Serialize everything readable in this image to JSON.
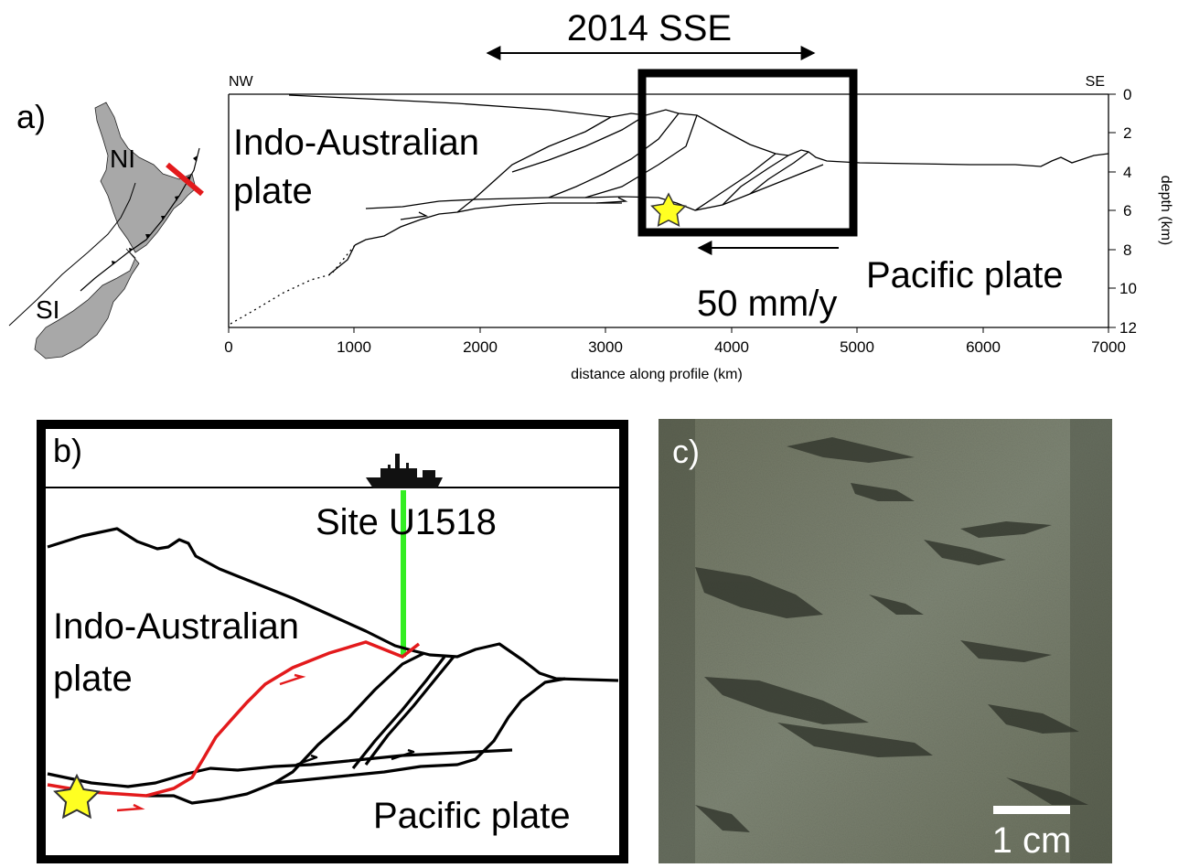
{
  "panel_a": {
    "label": "a)",
    "map": {
      "ni": "NI",
      "si": "SI"
    },
    "sse_label": "2014 SSE",
    "nw": "NW",
    "se": "SE",
    "plate_top_line1": "Indo-Australian",
    "plate_top_line2": "plate",
    "plate_bottom": "Pacific plate",
    "rate": "50 mm/y",
    "x_axis_label": "distance along profile (km)",
    "y_axis_label": "depth (km)",
    "x_ticks": [
      "0",
      "1000",
      "2000",
      "3000",
      "4000",
      "5000",
      "6000",
      "7000"
    ],
    "y_ticks": [
      "0",
      "2",
      "4",
      "6",
      "8",
      "10",
      "12"
    ]
  },
  "panel_b": {
    "label": "b)",
    "site": "Site U1518",
    "plate_top_line1": "Indo-Australian",
    "plate_top_line2": "plate",
    "plate_bottom": "Pacific plate",
    "colors": {
      "plate_boundary": "#e31a1c",
      "borehole": "#33ee22",
      "star": "#ffff22"
    }
  },
  "panel_c": {
    "label": "c)",
    "scale": "1 cm"
  }
}
